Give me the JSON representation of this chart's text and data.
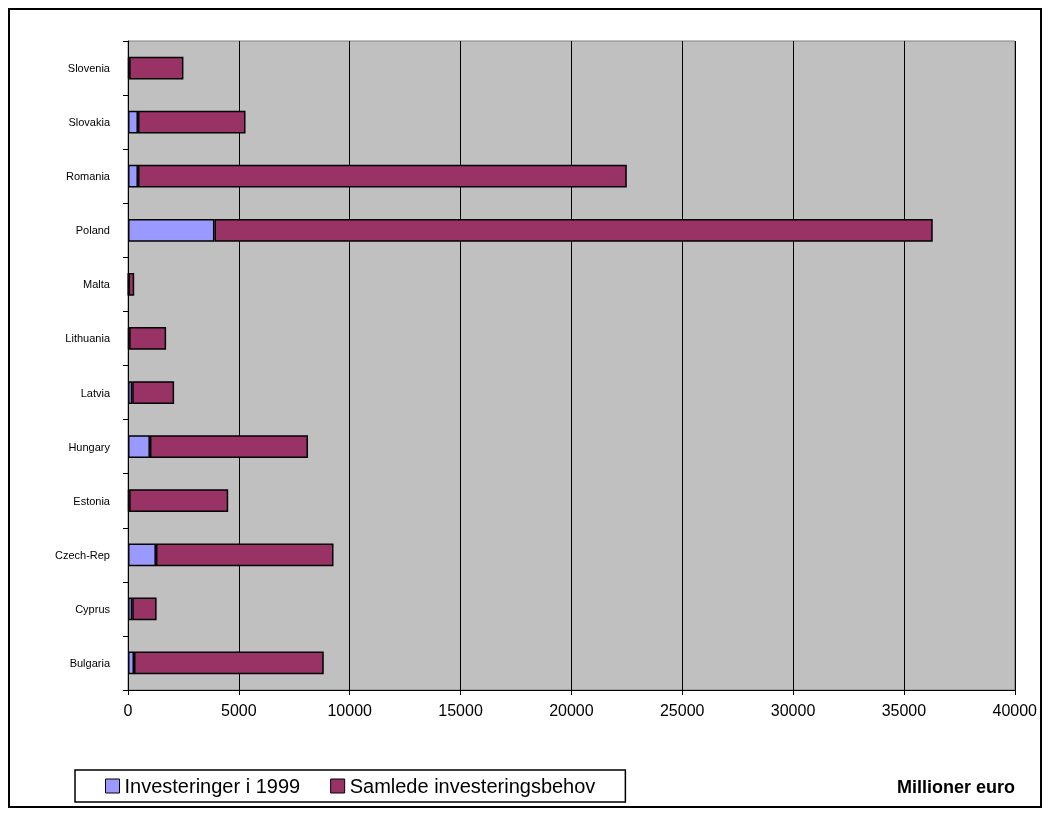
{
  "chart_data": {
    "type": "bar",
    "orientation": "horizontal",
    "stacked": true,
    "xlabel": "Millioner euro",
    "categories": [
      "Slovenia",
      "Slovakia",
      "Romania",
      "Poland",
      "Malta",
      "Lithuania",
      "Latvia",
      "Hungary",
      "Estonia",
      "Czech-Rep",
      "Cyprus",
      "Bulgaria"
    ],
    "series": [
      {
        "name": "Investeringer i 1999",
        "color": "#9999ff",
        "values": [
          50,
          450,
          450,
          3900,
          20,
          50,
          190,
          990,
          50,
          1260,
          190,
          270
        ]
      },
      {
        "name": "Samlede investeringsbehov",
        "color": "#993366",
        "values": [
          2450,
          4850,
          22050,
          32400,
          260,
          1670,
          1890,
          7130,
          4470,
          8010,
          1100,
          8560
        ]
      }
    ],
    "xlim": [
      0,
      40000
    ],
    "xticks": [
      0,
      5000,
      10000,
      15000,
      20000,
      25000,
      30000,
      35000,
      40000
    ],
    "grid": "x",
    "legend": "bottom"
  }
}
